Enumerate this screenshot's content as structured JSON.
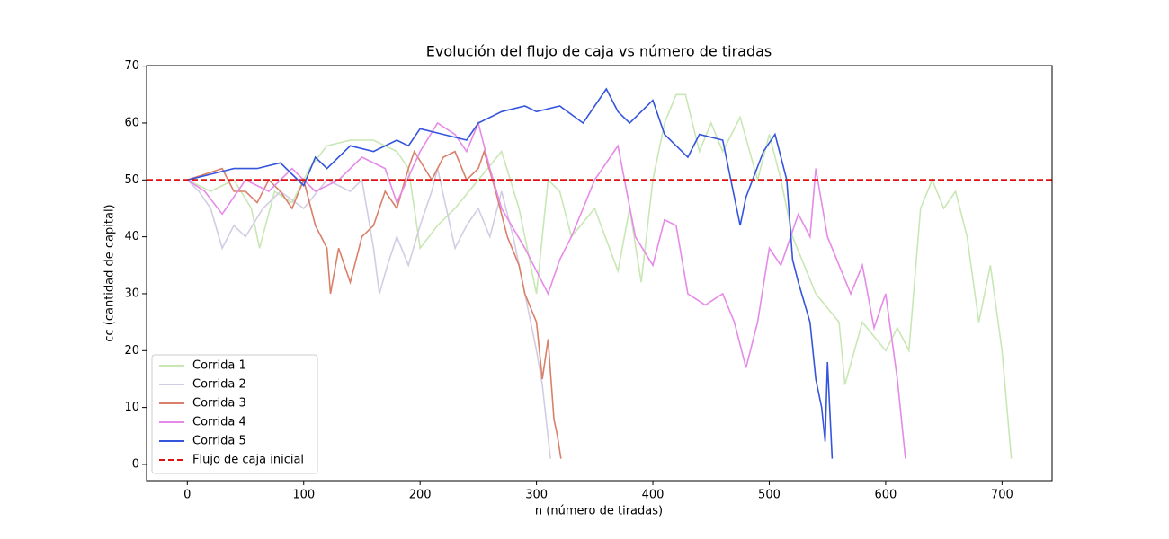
{
  "chart_data": {
    "type": "line",
    "title": "Evolución del flujo de caja vs número de tiradas",
    "xlabel": "n (número de tiradas)",
    "ylabel": "cc (cantidad de capital)",
    "xlim": [
      -35,
      743
    ],
    "ylim": [
      -2.85,
      70.1
    ],
    "xticks": [
      0,
      100,
      200,
      300,
      400,
      500,
      600,
      700
    ],
    "yticks": [
      0,
      10,
      20,
      30,
      40,
      50,
      60,
      70
    ],
    "legend": "lower left",
    "series": [
      {
        "name": "Corrida 1",
        "color": "#c9e7b4",
        "x": [
          0,
          20,
          40,
          55,
          62,
          75,
          90,
          105,
          120,
          140,
          160,
          180,
          190,
          200,
          215,
          230,
          250,
          270,
          285,
          300,
          310,
          320,
          330,
          350,
          370,
          380,
          390,
          400,
          410,
          420,
          428,
          440,
          450,
          460,
          475,
          490,
          500,
          510,
          520,
          540,
          560,
          565,
          580,
          600,
          610,
          620,
          630,
          640,
          650,
          660,
          670,
          680,
          690,
          700,
          708
        ],
        "values": [
          50,
          48,
          50,
          45,
          38,
          48,
          46,
          52,
          56,
          57,
          57,
          55,
          52,
          38,
          42,
          45,
          50,
          55,
          45,
          30,
          50,
          48,
          40,
          45,
          34,
          45,
          32,
          50,
          60,
          65,
          65,
          55,
          60,
          55,
          61,
          50,
          58,
          50,
          40,
          30,
          25,
          14,
          25,
          20,
          24,
          20,
          45,
          50,
          45,
          48,
          40,
          25,
          35,
          20,
          1
        ]
      },
      {
        "name": "Corrida 2",
        "color": "#d3cce3",
        "x": [
          0,
          10,
          20,
          30,
          40,
          50,
          65,
          80,
          100,
          120,
          140,
          150,
          160,
          165,
          172,
          180,
          190,
          200,
          210,
          215,
          230,
          240,
          250,
          260,
          270,
          280,
          290,
          300,
          305,
          312
        ],
        "values": [
          50,
          48,
          45,
          38,
          42,
          40,
          45,
          48,
          45,
          50,
          48,
          50,
          38,
          30,
          35,
          40,
          35,
          42,
          48,
          52,
          38,
          42,
          45,
          40,
          48,
          40,
          30,
          20,
          14,
          1
        ]
      },
      {
        "name": "Corrida 3",
        "color": "#d9806a",
        "x": [
          0,
          15,
          30,
          40,
          50,
          60,
          70,
          80,
          90,
          100,
          110,
          115,
          120,
          123,
          130,
          140,
          150,
          160,
          170,
          180,
          190,
          195,
          210,
          220,
          230,
          240,
          250,
          255,
          265,
          275,
          285,
          290,
          300,
          305,
          310,
          315,
          318,
          321
        ],
        "values": [
          50,
          51,
          52,
          48,
          48,
          46,
          50,
          48,
          45,
          50,
          42,
          40,
          38,
          30,
          38,
          32,
          40,
          42,
          48,
          45,
          52,
          55,
          50,
          54,
          55,
          50,
          52,
          55,
          48,
          40,
          35,
          30,
          25,
          15,
          22,
          8,
          5,
          1
        ]
      },
      {
        "name": "Corrida 4",
        "color": "#e68ae8",
        "x": [
          0,
          15,
          30,
          50,
          70,
          90,
          110,
          130,
          150,
          170,
          180,
          200,
          215,
          230,
          240,
          250,
          260,
          270,
          290,
          310,
          320,
          330,
          340,
          350,
          370,
          385,
          400,
          410,
          420,
          430,
          445,
          460,
          470,
          480,
          490,
          500,
          510,
          525,
          535,
          540,
          550,
          560,
          570,
          580,
          590,
          600,
          610,
          617
        ],
        "values": [
          50,
          48,
          44,
          50,
          48,
          52,
          48,
          50,
          54,
          52,
          46,
          55,
          60,
          58,
          55,
          60,
          52,
          45,
          38,
          30,
          36,
          40,
          45,
          50,
          56,
          40,
          35,
          43,
          42,
          30,
          28,
          30,
          25,
          17,
          25,
          38,
          35,
          44,
          40,
          52,
          40,
          35,
          30,
          35,
          24,
          30,
          15,
          1
        ]
      },
      {
        "name": "Corrida 5",
        "color": "#3555dd",
        "x": [
          0,
          20,
          40,
          60,
          80,
          90,
          100,
          110,
          120,
          140,
          160,
          180,
          190,
          200,
          220,
          240,
          250,
          270,
          290,
          300,
          320,
          340,
          360,
          370,
          380,
          400,
          410,
          430,
          440,
          460,
          475,
          480,
          495,
          505,
          515,
          520,
          525,
          535,
          540,
          545,
          548,
          550,
          554
        ],
        "values": [
          50,
          51,
          52,
          52,
          53,
          51,
          49,
          54,
          52,
          56,
          55,
          57,
          56,
          59,
          58,
          57,
          60,
          62,
          63,
          62,
          63,
          60,
          66,
          62,
          60,
          64,
          58,
          54,
          58,
          57,
          42,
          47,
          55,
          58,
          50,
          36,
          32,
          25,
          15,
          10,
          4,
          18,
          1
        ]
      },
      {
        "name": "Flujo de caja inicial",
        "color": "#dd1111",
        "type": "hline",
        "dash": true,
        "value": 50
      }
    ]
  }
}
